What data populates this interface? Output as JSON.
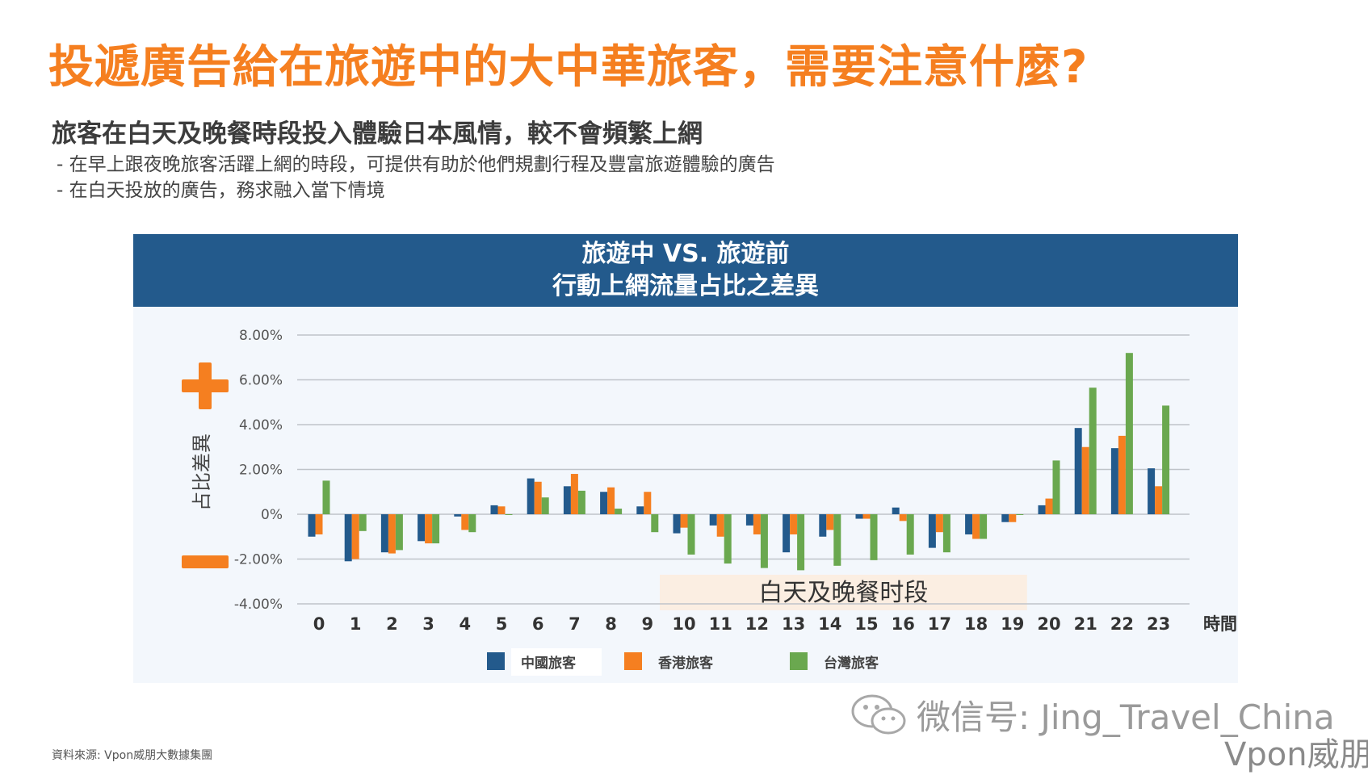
{
  "title": "投遞廣告給在旅遊中的大中華旅客，需要注意什麼?",
  "subtitle": "旅客在白天及晚餐時段投入體驗日本風情，較不會頻繁上網",
  "bullets": [
    "- 在早上跟夜晚旅客活躍上網的時段，可提供有助於他們規劃行程及豐富旅遊體驗的廣告",
    "- 在白天投放的廣告，務求融入當下情境"
  ],
  "chart_header": {
    "line1": "旅遊中 VS. 旅遊前",
    "line2": "行動上網流量占比之差異"
  },
  "chart_data": {
    "type": "bar",
    "title": "旅遊中 VS. 旅遊前 行動上網流量占比之差異",
    "xlabel": "時間",
    "ylabel": "占比差異",
    "ylim": [
      -4,
      8
    ],
    "yticks": [
      8,
      6,
      4,
      2,
      0,
      -2,
      -4
    ],
    "ytick_labels": [
      "8.00%",
      "6.00%",
      "4.00%",
      "2.00%",
      "0%",
      "-2.00%",
      "-4.00%"
    ],
    "categories": [
      "0",
      "1",
      "2",
      "3",
      "4",
      "5",
      "6",
      "7",
      "8",
      "9",
      "10",
      "11",
      "12",
      "13",
      "14",
      "15",
      "16",
      "17",
      "18",
      "19",
      "20",
      "21",
      "22",
      "23"
    ],
    "series": [
      {
        "name": "中國旅客",
        "color": "#235a8c",
        "values": [
          -1.0,
          -2.1,
          -1.7,
          -1.2,
          -0.1,
          0.4,
          1.6,
          1.25,
          1.0,
          0.35,
          -0.85,
          -0.5,
          -0.5,
          -1.7,
          -1.0,
          -0.2,
          0.3,
          -1.5,
          -0.9,
          -0.35,
          0.4,
          3.85,
          2.95,
          2.05
        ]
      },
      {
        "name": "香港旅客",
        "color": "#f57f20",
        "values": [
          -0.9,
          -2.0,
          -1.75,
          -1.3,
          -0.7,
          0.35,
          1.45,
          1.8,
          1.2,
          1.0,
          -0.6,
          -1.0,
          -0.9,
          -0.9,
          -0.7,
          -0.2,
          -0.3,
          -0.8,
          -1.1,
          -0.35,
          0.7,
          3.0,
          3.5,
          1.25
        ]
      },
      {
        "name": "台灣旅客",
        "color": "#6aa84f",
        "values": [
          1.5,
          -0.75,
          -1.6,
          -1.3,
          -0.8,
          0.0,
          0.75,
          1.05,
          0.25,
          -0.8,
          -1.8,
          -2.2,
          -2.4,
          -2.5,
          -2.3,
          -2.05,
          -1.8,
          -1.7,
          -1.1,
          0.0,
          2.4,
          5.65,
          7.2,
          4.85
        ]
      }
    ],
    "annotation": "白天及晚餐时段",
    "annotation_range": [
      "10",
      "19"
    ],
    "plus_label": "+",
    "minus_label": "−"
  },
  "watermark": "微信号: Jing_Travel_China",
  "brand": "Vpon威朋",
  "source": "資料來源: Vpon威朋大數據集團",
  "icons": [
    "wechat-icon",
    "plus-icon",
    "minus-icon"
  ]
}
